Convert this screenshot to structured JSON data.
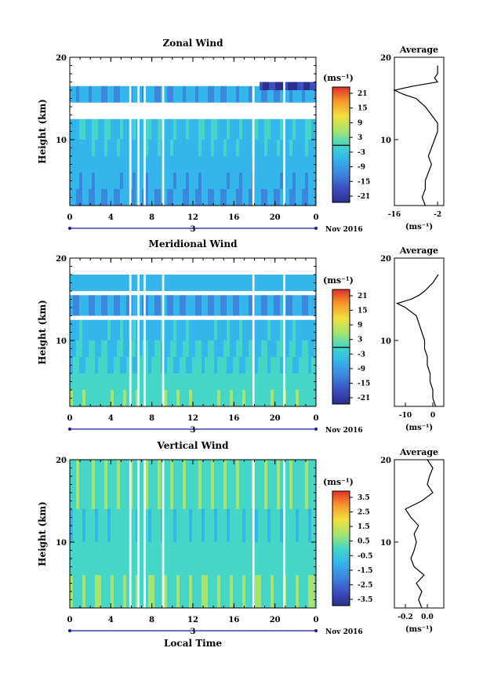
{
  "xaxis": {
    "ticks": [
      "0",
      "4",
      "8",
      "12",
      "16",
      "20",
      "0"
    ],
    "day_label": "3",
    "month_label": "Nov 2016",
    "xlabel": "Local Time"
  },
  "colorbar_unit": "(ms⁻¹)",
  "panels": [
    {
      "title": "Zonal Wind",
      "ylabel": "Height (km)",
      "yticks": [
        "20",
        "10"
      ],
      "colorbar_ticks": [
        "21",
        "15",
        "9",
        "3",
        "-3",
        "-9",
        "-15",
        "-21"
      ],
      "avg_title": "Average",
      "avg_yticks": [
        "20",
        "10"
      ],
      "avg_xticks": [
        "-16",
        "-2"
      ],
      "avg_unit": "(ms⁻¹)"
    },
    {
      "title": "Meridional Wind",
      "ylabel": "Height (km)",
      "yticks": [
        "20",
        "10"
      ],
      "colorbar_ticks": [
        "21",
        "15",
        "9",
        "3",
        "-3",
        "-9",
        "-15",
        "-21"
      ],
      "avg_title": "Average",
      "avg_yticks": [
        "20",
        "10"
      ],
      "avg_xticks": [
        "-10",
        "0"
      ],
      "avg_unit": "(ms⁻¹)"
    },
    {
      "title": "Vertical Wind",
      "ylabel": "Height (km)",
      "yticks": [
        "20",
        "10"
      ],
      "colorbar_ticks": [
        "3.5",
        "2.5",
        "1.5",
        "0.5",
        "-0.5",
        "-1.5",
        "-2.5",
        "-3.5"
      ],
      "avg_title": "Average",
      "avg_yticks": [
        "20",
        "10"
      ],
      "avg_xticks": [
        "-0.2",
        "0.0"
      ],
      "avg_unit": "(ms⁻¹)"
    }
  ],
  "chart_data": [
    {
      "type": "heatmap",
      "title": "Zonal Wind",
      "xlabel": "",
      "ylabel": "Height (km)",
      "xlim": [
        0,
        24
      ],
      "ylim": [
        2,
        20
      ],
      "zlim": [
        -24,
        24
      ],
      "colorbar_unit": "(ms⁻¹)",
      "data_gaps_hours": [
        [
          5.8,
          6.0
        ],
        [
          6.6,
          6.8
        ],
        [
          7.2,
          7.4
        ],
        [
          9.0,
          9.2
        ],
        [
          17.8,
          18.0
        ],
        [
          20.8,
          21.0
        ]
      ],
      "layers": [
        {
          "z_from": 2.0,
          "z_to": 4.0,
          "u": -9
        },
        {
          "z_from": 4.0,
          "z_to": 6.0,
          "u": -7
        },
        {
          "z_from": 6.0,
          "z_to": 8.0,
          "u": -6
        },
        {
          "z_from": 8.0,
          "z_to": 10.0,
          "u": -5
        },
        {
          "z_from": 10.0,
          "z_to": 12.5,
          "u": -4
        },
        {
          "z_from": 14.5,
          "z_to": 16.5,
          "u": -8
        },
        {
          "z_from": 16.0,
          "z_to": 17.0,
          "u": -22,
          "x_from": 18.5,
          "x_to": 24
        }
      ],
      "profile": {
        "title": "Average",
        "xlim": [
          -16,
          0
        ],
        "z": [
          2,
          3,
          4,
          5,
          6,
          7,
          8,
          9,
          10,
          11,
          12,
          13,
          14,
          15,
          15.5,
          16,
          16.5,
          17,
          17.5,
          18,
          18.5,
          19
        ],
        "u": [
          -6,
          -7,
          -6,
          -6,
          -5,
          -4,
          -5,
          -4,
          -3,
          -2,
          -2,
          -4,
          -6,
          -9,
          -13,
          -16,
          -10,
          -2,
          -3,
          -2,
          -2,
          -2
        ]
      }
    },
    {
      "type": "heatmap",
      "title": "Meridional Wind",
      "xlabel": "",
      "ylabel": "Height (km)",
      "xlim": [
        0,
        24
      ],
      "ylim": [
        2,
        20
      ],
      "zlim": [
        -24,
        24
      ],
      "colorbar_unit": "(ms⁻¹)",
      "data_gaps_hours": [
        [
          5.8,
          6.0
        ],
        [
          6.6,
          6.8
        ],
        [
          7.2,
          7.4
        ],
        [
          9.0,
          9.2
        ],
        [
          17.8,
          18.0
        ],
        [
          20.8,
          21.0
        ]
      ],
      "layers": [
        {
          "z_from": 2.0,
          "z_to": 4.0,
          "v": 1
        },
        {
          "z_from": 4.0,
          "z_to": 6.0,
          "v": 0
        },
        {
          "z_from": 6.0,
          "z_to": 8.0,
          "v": -2
        },
        {
          "z_from": 8.0,
          "z_to": 10.0,
          "v": -3
        },
        {
          "z_from": 10.0,
          "z_to": 12.5,
          "v": -5
        },
        {
          "z_from": 13.0,
          "z_to": 15.5,
          "v": -9
        },
        {
          "z_from": 16.0,
          "z_to": 18.0,
          "v": -6
        }
      ],
      "profile": {
        "title": "Average",
        "xlim": [
          -14,
          4
        ],
        "z": [
          2,
          3,
          4,
          5,
          6,
          7,
          8,
          9,
          10,
          11,
          12,
          13,
          14,
          14.5,
          15,
          15.5,
          16,
          17,
          18
        ],
        "v": [
          1,
          0,
          0,
          -1,
          -1,
          -2,
          -2,
          -3,
          -3,
          -4,
          -5,
          -6,
          -10,
          -13,
          -8,
          -5,
          -3,
          0,
          2
        ]
      }
    },
    {
      "type": "heatmap",
      "title": "Vertical Wind",
      "xlabel": "Local Time",
      "ylabel": "Height (km)",
      "xlim": [
        0,
        24
      ],
      "ylim": [
        2,
        20
      ],
      "zlim": [
        -4,
        4
      ],
      "colorbar_unit": "(ms⁻¹)",
      "data_gaps_hours": [
        [
          5.8,
          6.0
        ],
        [
          6.6,
          6.8
        ],
        [
          7.2,
          7.4
        ],
        [
          9.0,
          9.2
        ],
        [
          17.8,
          18.0
        ],
        [
          20.8,
          21.0
        ]
      ],
      "layers": [
        {
          "z_from": 2.0,
          "z_to": 6.0,
          "w": 0.3
        },
        {
          "z_from": 6.0,
          "z_to": 10.0,
          "w": 0.0
        },
        {
          "z_from": 10.0,
          "z_to": 14.0,
          "w": -0.2
        },
        {
          "z_from": 14.0,
          "z_to": 20.0,
          "w": 0.2
        }
      ],
      "profile": {
        "title": "Average",
        "xlim": [
          -0.3,
          0.15
        ],
        "z": [
          2,
          3,
          4,
          5,
          6,
          7,
          8,
          9,
          10,
          11,
          12,
          13,
          14,
          15,
          16,
          17,
          18,
          19,
          20
        ],
        "w": [
          -0.05,
          -0.08,
          -0.05,
          -0.1,
          -0.03,
          -0.12,
          -0.15,
          -0.12,
          -0.1,
          -0.12,
          -0.08,
          -0.15,
          -0.2,
          -0.05,
          0.05,
          0.0,
          0.02,
          0.05,
          0.0
        ]
      }
    }
  ]
}
